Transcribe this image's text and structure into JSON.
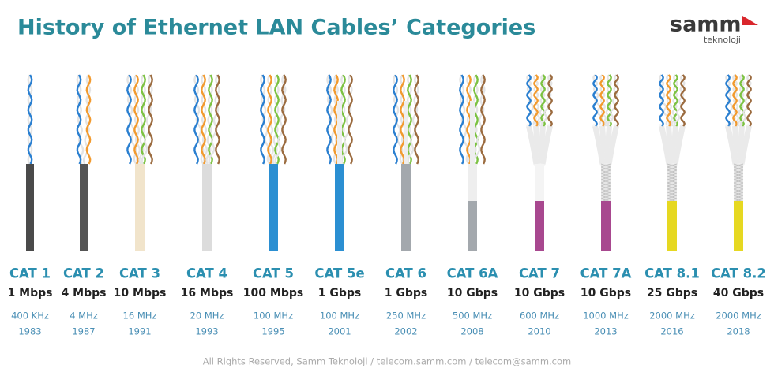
{
  "header": {
    "title": "History of Ethernet LAN Cables’ Categories",
    "logo": "samm",
    "logo_sub": "teknoloji"
  },
  "cables": [
    {
      "name": "CAT 1",
      "speed": "1 Mbps",
      "frequency": "400 KHz",
      "year": "1983"
    },
    {
      "name": "CAT 2",
      "speed": "4 Mbps",
      "frequency": "4 MHz",
      "year": "1987"
    },
    {
      "name": "CAT 3",
      "speed": "10 Mbps",
      "frequency": "16 MHz",
      "year": "1991"
    },
    {
      "name": "CAT 4",
      "speed": "16 Mbps",
      "frequency": "20 MHz",
      "year": "1993"
    },
    {
      "name": "CAT 5",
      "speed": "100 Mbps",
      "frequency": "100 MHz",
      "year": "1995"
    },
    {
      "name": "CAT 5e",
      "speed": "1 Gbps",
      "frequency": "100 MHz",
      "year": "2001"
    },
    {
      "name": "CAT 6",
      "speed": "1 Gbps",
      "frequency": "250 MHz",
      "year": "2002"
    },
    {
      "name": "CAT 6A",
      "speed": "10 Gbps",
      "frequency": "500 MHz",
      "year": "2008"
    },
    {
      "name": "CAT 7",
      "speed": "10 Gbps",
      "frequency": "600 MHz",
      "year": "2010"
    },
    {
      "name": "CAT 7A",
      "speed": "10 Gbps",
      "frequency": "1000 MHz",
      "year": "2013"
    },
    {
      "name": "CAT 8.1",
      "speed": "25 Gbps",
      "frequency": "2000 MHz",
      "year": "2016"
    },
    {
      "name": "CAT 8.2",
      "speed": "40 Gbps",
      "frequency": "2000 MHz",
      "year": "2018"
    }
  ],
  "footer": "All Rights Reserved, Samm Teknoloji / telecom.samm.com / telecom@samm.com"
}
